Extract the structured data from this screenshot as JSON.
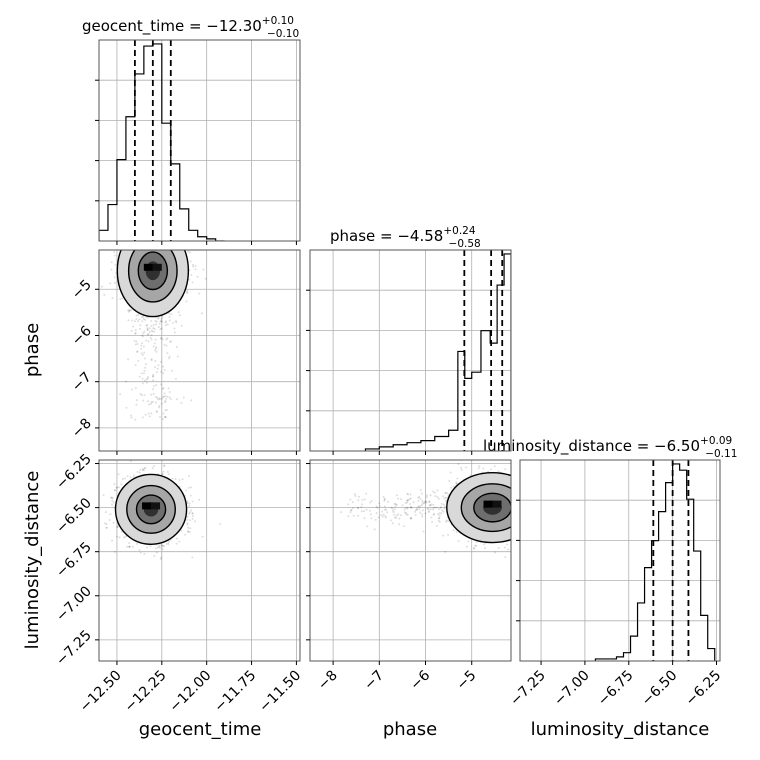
{
  "chart_data": {
    "type": "corner",
    "parameters": [
      "geocent_time",
      "phase",
      "luminosity_distance"
    ],
    "titles": [
      {
        "label": "geocent_time = −12.30",
        "sup": "+0.10",
        "sub": "−0.10"
      },
      {
        "label": "phase = −4.58",
        "sup": "+0.24",
        "sub": "−0.58"
      },
      {
        "label": "luminosity_distance = −6.50",
        "sup": "+0.09",
        "sub": "−0.11"
      }
    ],
    "axis_labels": {
      "x": [
        "geocent_time",
        "phase",
        "luminosity_distance"
      ],
      "y": [
        "phase",
        "luminosity_distance"
      ]
    },
    "ranges": {
      "geocent_time": [
        -12.6,
        -11.48
      ],
      "phase": [
        -8.5,
        -4.15
      ],
      "luminosity_distance": [
        -7.37,
        -6.23
      ]
    },
    "ticks": {
      "geocent_time": [
        -12.5,
        -12.25,
        -12.0,
        -11.75,
        -11.5
      ],
      "phase": [
        -8,
        -7,
        -6,
        -5
      ],
      "luminosity_distance": [
        -7.25,
        -7.0,
        -6.75,
        -6.5,
        -6.25
      ]
    },
    "tick_labels": {
      "geocent_time": [
        "−12.50",
        "−12.25",
        "−12.00",
        "−11.75",
        "−11.50"
      ],
      "phase": [
        "−8",
        "−7",
        "−6",
        "−5"
      ],
      "luminosity_distance": [
        "−7.25",
        "−7.00",
        "−6.75",
        "−6.50",
        "−6.25"
      ]
    },
    "quantiles": {
      "geocent_time": [
        -12.4,
        -12.3,
        -12.2
      ],
      "phase": [
        -5.16,
        -4.58,
        -4.34
      ],
      "luminosity_distance": [
        -6.61,
        -6.5,
        -6.41
      ]
    },
    "histograms": {
      "geocent_time": {
        "edges": [
          -12.6,
          -12.55,
          -12.5,
          -12.45,
          -12.4,
          -12.35,
          -12.3,
          -12.25,
          -12.2,
          -12.15,
          -12.1,
          -12.05,
          -12.0,
          -11.95,
          -11.9
        ],
        "counts": [
          5,
          17,
          38,
          58,
          78,
          91,
          92,
          55,
          36,
          15,
          5,
          2,
          1,
          0
        ]
      },
      "phase": {
        "edges": [
          -7.3,
          -7.0,
          -6.7,
          -6.4,
          -6.1,
          -5.8,
          -5.5,
          -5.3,
          -5.15,
          -5.0,
          -4.8,
          -4.6,
          -4.45,
          -4.3,
          -4.15
        ],
        "counts": [
          1,
          2,
          3,
          4,
          5,
          7,
          10,
          48,
          35,
          38,
          58,
          52,
          80,
          95
        ]
      },
      "luminosity_distance": {
        "edges": [
          -6.94,
          -6.9,
          -6.86,
          -6.82,
          -6.78,
          -6.74,
          -6.7,
          -6.66,
          -6.62,
          -6.58,
          -6.54,
          -6.5,
          -6.46,
          -6.42,
          -6.38,
          -6.34,
          -6.3,
          -6.26
        ],
        "counts": [
          1,
          1,
          1,
          2,
          4,
          12,
          28,
          45,
          58,
          72,
          86,
          95,
          92,
          78,
          53,
          22,
          6
        ]
      }
    },
    "density_2d": [
      {
        "x": "geocent_time",
        "y": "phase",
        "center": [
          -12.3,
          -4.6
        ],
        "spread": [
          0.09,
          0.45
        ],
        "tail": "phase-low"
      },
      {
        "x": "geocent_time",
        "y": "luminosity_distance",
        "center": [
          -12.31,
          -6.51
        ],
        "spread": [
          0.09,
          0.09
        ]
      },
      {
        "x": "phase",
        "y": "luminosity_distance",
        "center": [
          -4.55,
          -6.5
        ],
        "spread": [
          0.45,
          0.09
        ],
        "tail": "phase-low"
      }
    ],
    "grid": true
  }
}
